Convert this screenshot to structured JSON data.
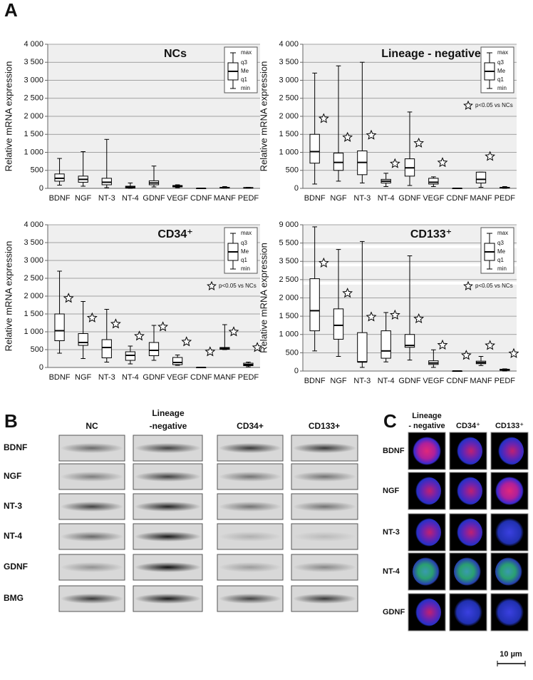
{
  "panel_a": {
    "label": "A"
  },
  "chart_data": [
    {
      "type": "box",
      "title": "NCs",
      "y_label": "Relative mRNA expression",
      "categories": [
        "BDNF",
        "NGF",
        "NT-3",
        "NT-4",
        "GDNF",
        "VEGF",
        "CDNF",
        "MANF",
        "PEDF"
      ],
      "min": [
        90,
        60,
        20,
        0,
        40,
        20,
        0,
        5,
        5
      ],
      "q1": [
        200,
        170,
        100,
        10,
        100,
        40,
        0,
        15,
        10
      ],
      "median": [
        280,
        250,
        170,
        30,
        150,
        60,
        0,
        20,
        15
      ],
      "q3": [
        400,
        340,
        280,
        60,
        210,
        80,
        0,
        30,
        20
      ],
      "max": [
        830,
        1020,
        1360,
        150,
        620,
        100,
        5,
        50,
        30
      ],
      "stars": [
        false,
        false,
        false,
        false,
        false,
        false,
        false,
        false,
        false
      ],
      "ylim": [
        0,
        4000
      ],
      "yticks": [
        0,
        500,
        {
          "value": 1000,
          "label": "1 000"
        },
        {
          "value": 1500,
          "label": "1 500"
        },
        {
          "value": 2000,
          "label": "2 000"
        },
        {
          "value": 2500,
          "label": "2 500"
        },
        {
          "value": 3000,
          "label": "3 000"
        },
        {
          "value": 3500,
          "label": "3 500"
        },
        {
          "value": 4000,
          "label": "4 000"
        }
      ],
      "grid": true,
      "key_labels": [
        "max",
        "q3",
        "Me",
        "q1",
        "min"
      ]
    },
    {
      "type": "box",
      "title": "Lineage - negative",
      "y_label": "Relative mRNA expression",
      "categories": [
        "BDNF",
        "NGF",
        "NT-3",
        "NT-4",
        "GDNF",
        "VEGF",
        "CDNF",
        "MANF",
        "PEDF"
      ],
      "min": [
        120,
        200,
        150,
        50,
        80,
        50,
        0,
        30,
        0
      ],
      "q1": [
        700,
        500,
        380,
        150,
        340,
        120,
        0,
        150,
        10
      ],
      "median": [
        1020,
        720,
        720,
        200,
        570,
        170,
        0,
        250,
        20
      ],
      "q3": [
        1500,
        980,
        1040,
        250,
        820,
        280,
        0,
        450,
        30
      ],
      "max": [
        3200,
        3400,
        3500,
        420,
        2120,
        320,
        5,
        450,
        50
      ],
      "stars": [
        true,
        true,
        true,
        true,
        true,
        true,
        false,
        true,
        false
      ],
      "star_note": "p<0.05 vs NCs",
      "ylim": [
        0,
        4000
      ],
      "yticks": [
        0,
        500,
        {
          "value": 1000,
          "label": "1 000"
        },
        {
          "value": 1500,
          "label": "1 500"
        },
        {
          "value": 2000,
          "label": "2 000"
        },
        {
          "value": 2500,
          "label": "2 500"
        },
        {
          "value": 3000,
          "label": "3 000"
        },
        {
          "value": 3500,
          "label": "3 500"
        },
        {
          "value": 4000,
          "label": "4 000"
        }
      ],
      "grid": true,
      "key_labels": [
        "max",
        "q3",
        "Me",
        "q1",
        "min"
      ]
    },
    {
      "type": "box",
      "title": "CD34⁺",
      "y_label": "Relative mRNA expression",
      "categories": [
        "BDNF",
        "NGF",
        "NT-3",
        "NT-4",
        "GDNF",
        "VEGF",
        "CDNF",
        "MANF",
        "PEDF"
      ],
      "min": [
        400,
        250,
        150,
        100,
        200,
        60,
        0,
        500,
        20
      ],
      "q1": [
        750,
        620,
        270,
        200,
        330,
        80,
        0,
        510,
        50
      ],
      "median": [
        1030,
        700,
        560,
        340,
        480,
        140,
        0,
        540,
        80
      ],
      "q3": [
        1500,
        950,
        780,
        440,
        700,
        280,
        0,
        560,
        120
      ],
      "max": [
        2700,
        1850,
        1630,
        600,
        1180,
        350,
        10,
        1200,
        150
      ],
      "stars": [
        true,
        true,
        true,
        true,
        true,
        true,
        true,
        true,
        true
      ],
      "star_note": "p<0.05 vs NCs",
      "ylim": [
        0,
        4000
      ],
      "yticks": [
        0,
        500,
        {
          "value": 1000,
          "label": "1 000"
        },
        {
          "value": 1500,
          "label": "1 500"
        },
        {
          "value": 2000,
          "label": "2 000"
        },
        {
          "value": 2500,
          "label": "2 500"
        },
        {
          "value": 3000,
          "label": "3 000"
        },
        {
          "value": 3500,
          "label": "3 500"
        },
        {
          "value": 4000,
          "label": "4 000"
        }
      ],
      "grid": true,
      "key_labels": [
        "max",
        "q3",
        "Me",
        "q1",
        "min"
      ]
    },
    {
      "type": "box",
      "title": "CD133⁺",
      "y_label": "Relative mRNA expression",
      "categories": [
        "BDNF",
        "NGF",
        "NT-3",
        "NT-4",
        "GDNF",
        "VEGF",
        "CDNF",
        "MANF",
        "PEDF"
      ],
      "min": [
        550,
        400,
        100,
        250,
        300,
        100,
        0,
        150,
        0
      ],
      "q1": [
        1100,
        870,
        250,
        350,
        650,
        180,
        0,
        200,
        20
      ],
      "median": [
        1650,
        1250,
        250,
        550,
        700,
        220,
        0,
        230,
        30
      ],
      "q3": [
        2550,
        1700,
        1050,
        1100,
        1000,
        280,
        0,
        270,
        50
      ],
      "max": [
        8600,
        4800,
        5800,
        1600,
        4100,
        580,
        10,
        400,
        60
      ],
      "stars": [
        true,
        true,
        true,
        true,
        true,
        true,
        true,
        true,
        true
      ],
      "star_note": "p<0.05 vs NCs",
      "ylim": [
        0,
        9000
      ],
      "yticks": [
        0,
        500,
        {
          "value": 1000,
          "label": "1 000"
        },
        {
          "value": 1500,
          "label": "1 500"
        },
        {
          "value": 2000,
          "label": "2 000"
        },
        {
          "value": 2500,
          "label": "2 500"
        },
        {
          "value": 3500,
          "label": "3 500"
        },
        {
          "value": 5500,
          "label": "5 500"
        },
        {
          "value": 9000,
          "label": "9 000"
        }
      ],
      "broken_axis": true,
      "grid": true,
      "key_labels": [
        "max",
        "q3",
        "Me",
        "q1",
        "min"
      ]
    }
  ],
  "panel_b": {
    "label": "B",
    "columns": [
      "NC",
      "Lineage",
      "-negative",
      "CD34+",
      "CD133+"
    ],
    "rows": [
      "BDNF",
      "NGF",
      "NT-3",
      "NT-4",
      "GDNF",
      "BMG"
    ]
  },
  "panel_c": {
    "label": "C",
    "columns": [
      "Lineage",
      "- negative",
      "CD34⁺",
      "CD133⁺"
    ],
    "rows": [
      "BDNF",
      "NGF",
      "NT-3",
      "NT-4",
      "GDNF"
    ],
    "scale_bar": "10 µm"
  }
}
